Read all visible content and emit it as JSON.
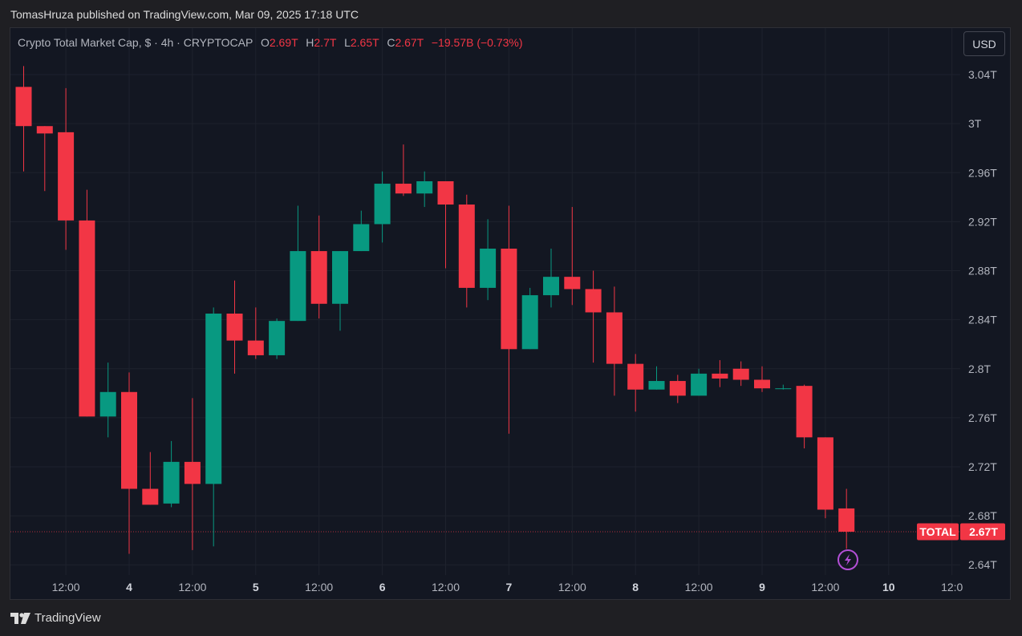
{
  "header": {
    "publisher_line": "TomasHruza published on TradingView.com, Mar 09, 2025 17:18 UTC"
  },
  "legend": {
    "symbol": "Crypto Total Market Cap, $ · 4h · CRYPTOCAP",
    "o_label": "O",
    "o_value": "2.69T",
    "h_label": "H",
    "h_value": "2.7T",
    "l_label": "L",
    "l_value": "2.65T",
    "c_label": "C",
    "c_value": "2.67T",
    "change": "−19.57B (−0.73%)"
  },
  "currency_button": "USD",
  "footer": {
    "brand": "TradingView"
  },
  "colors": {
    "up": "#089981",
    "down": "#f23645",
    "background": "#131722",
    "grid": "#1e222d"
  },
  "icons": {
    "lightning": "lightning-icon",
    "logo": "tradingview-logo-icon"
  },
  "chart_data": {
    "type": "candlestick",
    "title": "Crypto Total Market Cap, $ · 4h · CRYPTOCAP",
    "timeframe": "4h",
    "x_tick_labels": [
      "12:00",
      "4",
      "12:00",
      "5",
      "12:00",
      "6",
      "12:00",
      "7",
      "12:00",
      "8",
      "12:00",
      "9",
      "12:00",
      "10",
      "12:0"
    ],
    "y_tick_labels": [
      "3.04T",
      "3T",
      "2.96T",
      "2.92T",
      "2.88T",
      "2.84T",
      "2.8T",
      "2.76T",
      "2.72T",
      "2.68T",
      "2.64T"
    ],
    "y_ticks": [
      3.04,
      3.0,
      2.96,
      2.92,
      2.88,
      2.84,
      2.8,
      2.76,
      2.72,
      2.68,
      2.64
    ],
    "y_unit": "T",
    "ylim": [
      2.612,
      3.078
    ],
    "grid": true,
    "last_price_label": {
      "name": "TOTAL",
      "value": "2.67T",
      "price": 2.667
    },
    "candles": [
      {
        "o": 3.03,
        "h": 3.047,
        "l": 2.961,
        "c": 2.998
      },
      {
        "o": 2.998,
        "h": 2.998,
        "l": 2.945,
        "c": 2.992
      },
      {
        "o": 2.993,
        "h": 3.029,
        "l": 2.897,
        "c": 2.921
      },
      {
        "o": 2.921,
        "h": 2.946,
        "l": 2.761,
        "c": 2.761
      },
      {
        "o": 2.761,
        "h": 2.805,
        "l": 2.744,
        "c": 2.781
      },
      {
        "o": 2.781,
        "h": 2.797,
        "l": 2.649,
        "c": 2.702
      },
      {
        "o": 2.702,
        "h": 2.732,
        "l": 2.689,
        "c": 2.689
      },
      {
        "o": 2.69,
        "h": 2.741,
        "l": 2.687,
        "c": 2.724
      },
      {
        "o": 2.724,
        "h": 2.776,
        "l": 2.652,
        "c": 2.706
      },
      {
        "o": 2.706,
        "h": 2.85,
        "l": 2.655,
        "c": 2.845
      },
      {
        "o": 2.845,
        "h": 2.872,
        "l": 2.796,
        "c": 2.823
      },
      {
        "o": 2.823,
        "h": 2.85,
        "l": 2.808,
        "c": 2.811
      },
      {
        "o": 2.811,
        "h": 2.841,
        "l": 2.808,
        "c": 2.839
      },
      {
        "o": 2.839,
        "h": 2.933,
        "l": 2.839,
        "c": 2.896
      },
      {
        "o": 2.896,
        "h": 2.925,
        "l": 2.841,
        "c": 2.853
      },
      {
        "o": 2.853,
        "h": 2.896,
        "l": 2.831,
        "c": 2.896
      },
      {
        "o": 2.896,
        "h": 2.929,
        "l": 2.896,
        "c": 2.918
      },
      {
        "o": 2.918,
        "h": 2.961,
        "l": 2.903,
        "c": 2.951
      },
      {
        "o": 2.951,
        "h": 2.983,
        "l": 2.941,
        "c": 2.943
      },
      {
        "o": 2.943,
        "h": 2.961,
        "l": 2.932,
        "c": 2.953
      },
      {
        "o": 2.953,
        "h": 2.953,
        "l": 2.882,
        "c": 2.934
      },
      {
        "o": 2.934,
        "h": 2.942,
        "l": 2.85,
        "c": 2.866
      },
      {
        "o": 2.866,
        "h": 2.922,
        "l": 2.856,
        "c": 2.898
      },
      {
        "o": 2.898,
        "h": 2.933,
        "l": 2.747,
        "c": 2.816
      },
      {
        "o": 2.816,
        "h": 2.866,
        "l": 2.816,
        "c": 2.86
      },
      {
        "o": 2.86,
        "h": 2.898,
        "l": 2.85,
        "c": 2.875
      },
      {
        "o": 2.875,
        "h": 2.932,
        "l": 2.852,
        "c": 2.865
      },
      {
        "o": 2.865,
        "h": 2.88,
        "l": 2.805,
        "c": 2.846
      },
      {
        "o": 2.846,
        "h": 2.867,
        "l": 2.778,
        "c": 2.804
      },
      {
        "o": 2.804,
        "h": 2.812,
        "l": 2.765,
        "c": 2.783
      },
      {
        "o": 2.783,
        "h": 2.802,
        "l": 2.783,
        "c": 2.79
      },
      {
        "o": 2.79,
        "h": 2.795,
        "l": 2.772,
        "c": 2.778
      },
      {
        "o": 2.778,
        "h": 2.8,
        "l": 2.778,
        "c": 2.796
      },
      {
        "o": 2.796,
        "h": 2.807,
        "l": 2.785,
        "c": 2.792
      },
      {
        "o": 2.8,
        "h": 2.806,
        "l": 2.786,
        "c": 2.791
      },
      {
        "o": 2.791,
        "h": 2.802,
        "l": 2.781,
        "c": 2.784
      },
      {
        "o": 2.784,
        "h": 2.787,
        "l": 2.783,
        "c": 2.784
      },
      {
        "o": 2.786,
        "h": 2.787,
        "l": 2.735,
        "c": 2.744
      },
      {
        "o": 2.744,
        "h": 2.744,
        "l": 2.678,
        "c": 2.685
      },
      {
        "o": 2.686,
        "h": 2.702,
        "l": 2.653,
        "c": 2.667
      }
    ]
  }
}
